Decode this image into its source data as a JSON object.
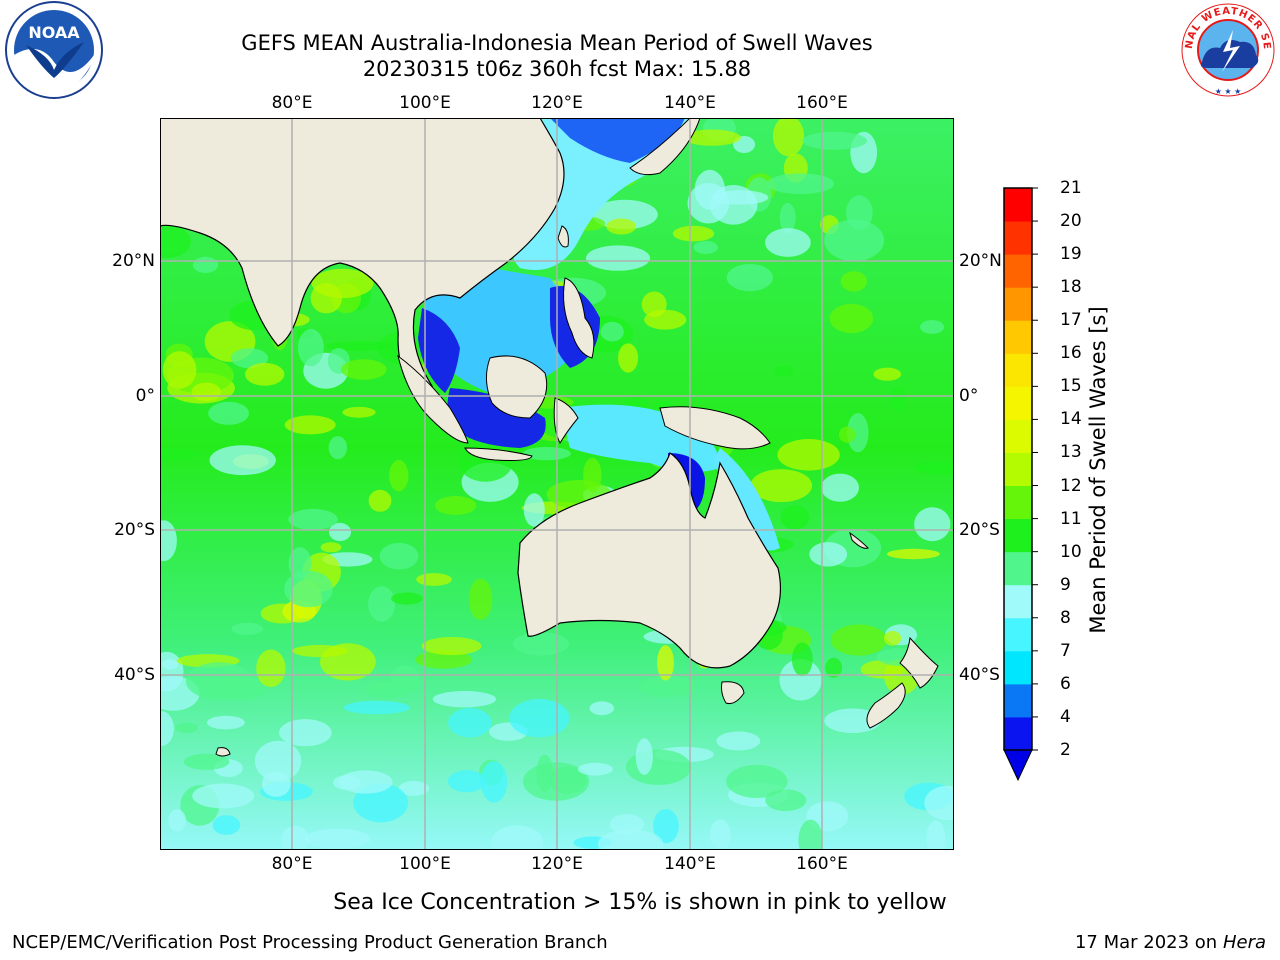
{
  "title_line1": "GEFS MEAN Australia-Indonesia Mean Period of Swell Waves",
  "title_line2": "20230315 t06z 360h fcst   Max: 15.88",
  "logo_left": {
    "name": "noaa-logo",
    "text": "NOAA"
  },
  "logo_right": {
    "name": "nws-logo",
    "text": "NATIONAL WEATHER SERVICE"
  },
  "map": {
    "lon_ticks": [
      "80°E",
      "100°E",
      "120°E",
      "140°E",
      "160°E"
    ],
    "lat_ticks": [
      "20°N",
      "0°",
      "20°S",
      "40°S"
    ],
    "colors": {
      "land": "#efebdc",
      "gridline": "#b0b0b0"
    }
  },
  "colorbar": {
    "title": "Mean Period of Swell Waves [s]",
    "levels": [
      "2",
      "4",
      "6",
      "7",
      "8",
      "9",
      "10",
      "11",
      "12",
      "13",
      "14",
      "15",
      "16",
      "17",
      "18",
      "19",
      "20",
      "21"
    ],
    "colors": [
      "#0a14f0",
      "#0a78f5",
      "#00e6ff",
      "#46f5ff",
      "#a0fafa",
      "#50f58c",
      "#1ef01e",
      "#64f50a",
      "#b4fa00",
      "#dcfa00",
      "#f5f500",
      "#fae600",
      "#ffc800",
      "#ff9600",
      "#ff6400",
      "#ff3200",
      "#ff0000"
    ],
    "under_color": "#0000e6"
  },
  "note": "Sea Ice Concentration > 15% is shown in pink to yellow",
  "footer_left": "NCEP/EMC/Verification Post Processing Product Generation Branch",
  "footer_date": "17 Mar 2023 on",
  "footer_host": "Hera"
}
